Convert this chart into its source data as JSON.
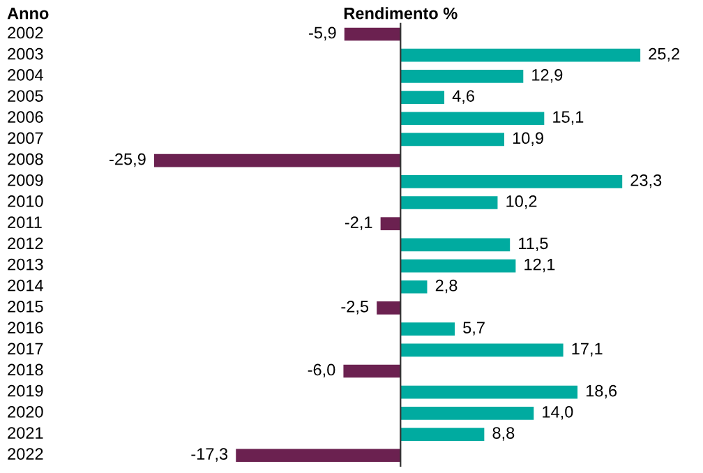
{
  "chart_data": {
    "type": "bar",
    "orientation": "horizontal",
    "title": "Rendimento %",
    "ylabel": "Anno",
    "categories": [
      "2002",
      "2003",
      "2004",
      "2005",
      "2006",
      "2007",
      "2008",
      "2009",
      "2010",
      "2011",
      "2012",
      "2013",
      "2014",
      "2015",
      "2016",
      "2017",
      "2018",
      "2019",
      "2020",
      "2021",
      "2022"
    ],
    "values": [
      -5.9,
      25.2,
      12.9,
      4.6,
      15.1,
      10.9,
      -25.9,
      23.3,
      10.2,
      -2.1,
      11.5,
      12.1,
      2.8,
      -2.5,
      5.7,
      17.1,
      -6.0,
      18.6,
      14.0,
      8.8,
      -17.3
    ],
    "value_labels": [
      "-5,9",
      "25,2",
      "12,9",
      "4,6",
      "15,1",
      "10,9",
      "-25,9",
      "23,3",
      "10,2",
      "-2,1",
      "11,5",
      "12,1",
      "2,8",
      "-2,5",
      "5,7",
      "17,1",
      "-6,0",
      "18,6",
      "14,0",
      "8,8",
      "-17,3"
    ],
    "colors": [
      "#6b2150",
      "#00aba0",
      "#00aba0",
      "#00aba0",
      "#00aba0",
      "#00aba0",
      "#6b2150",
      "#00aba0",
      "#00aba0",
      "#6b2150",
      "#00aba0",
      "#00aba0",
      "#00aba0",
      "#6b2150",
      "#00aba0",
      "#00aba0",
      "#6b2150",
      "#00aba0",
      "#00aba0",
      "#00aba0",
      "#6b2150"
    ],
    "grid": false,
    "legend": false
  }
}
